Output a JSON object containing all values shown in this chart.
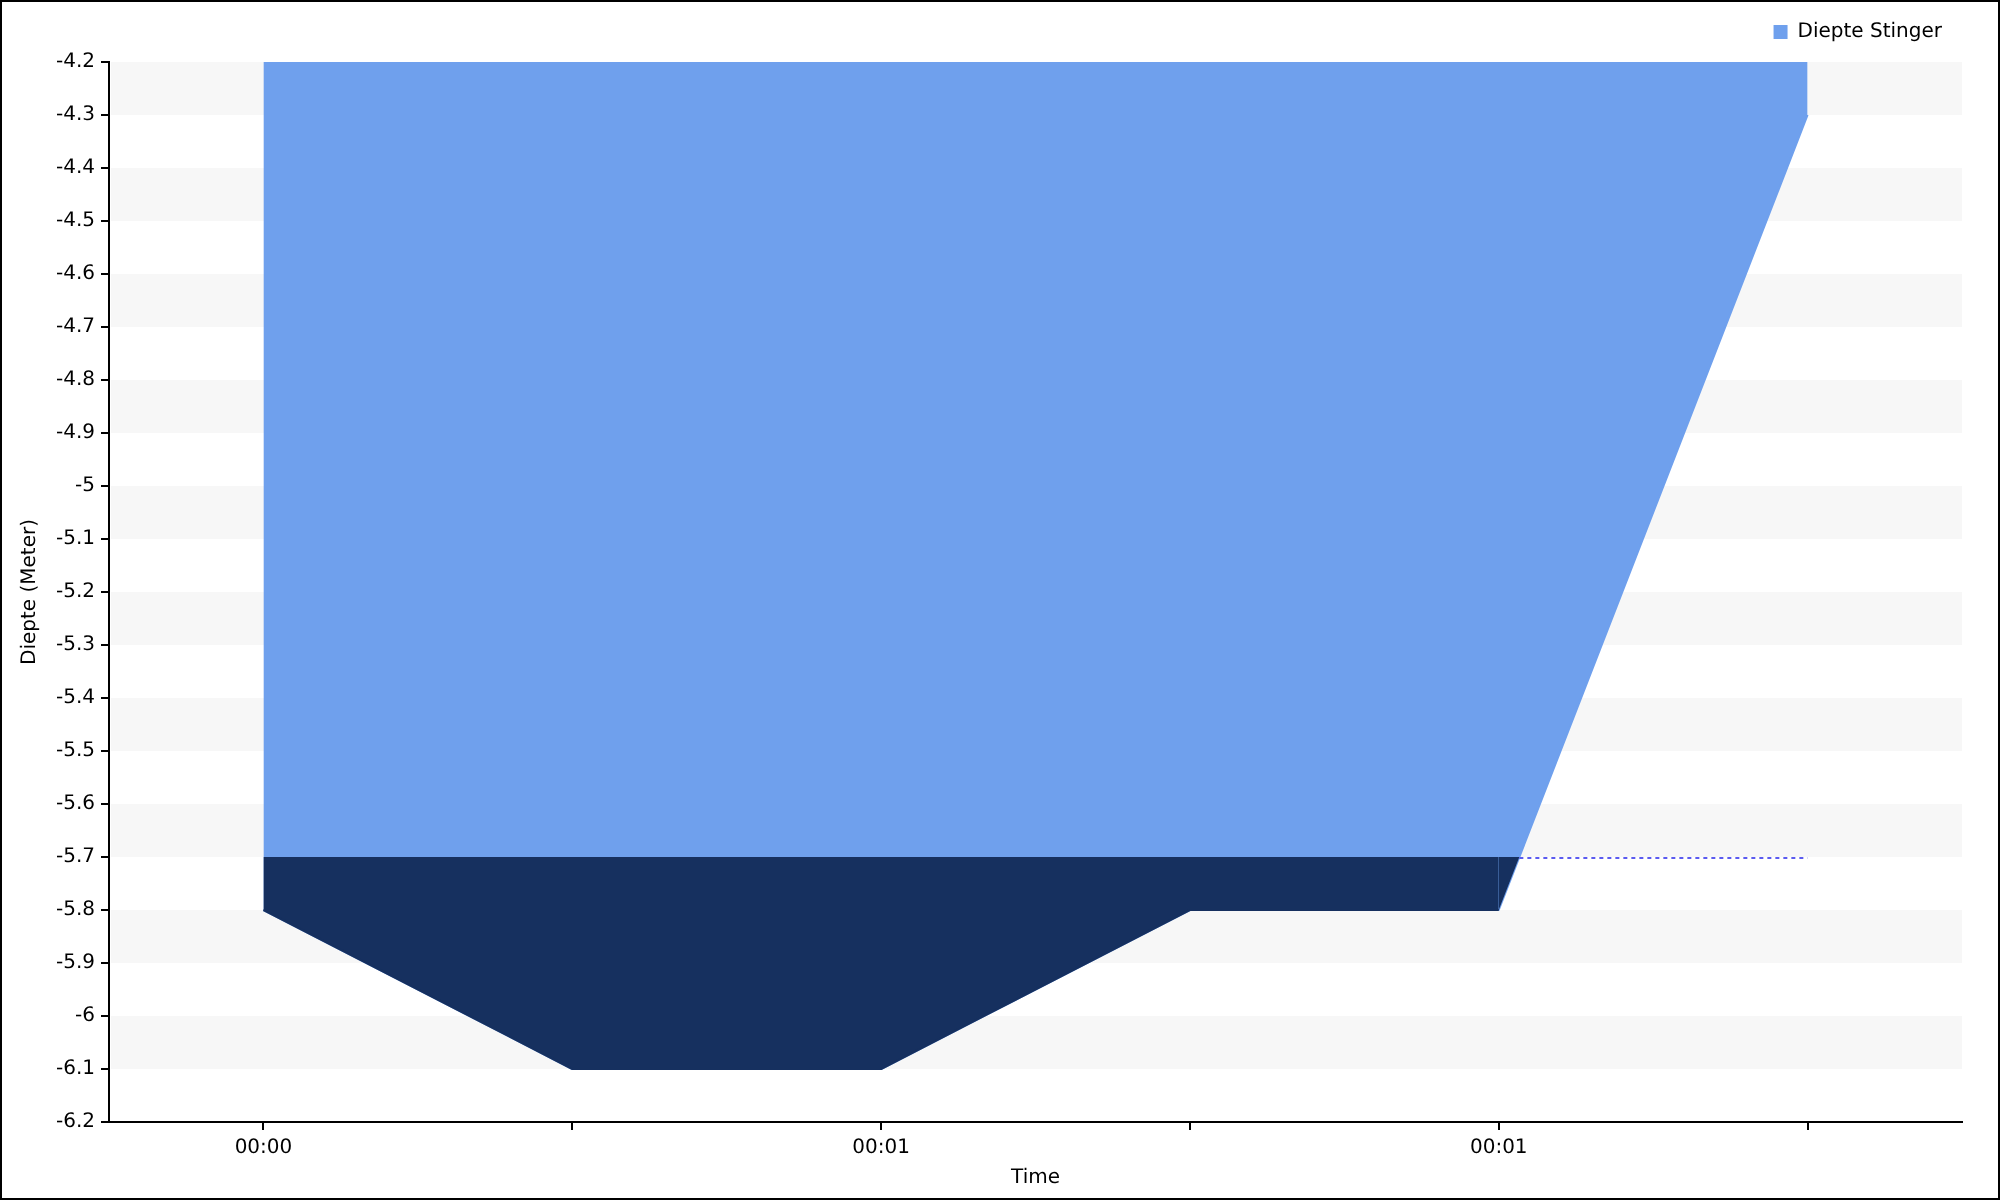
{
  "chart_data": {
    "type": "area",
    "xlabel": "Time",
    "ylabel": "Diepte (Meter)",
    "categories": [
      "00:00",
      null,
      "00:01",
      null,
      "00:01",
      null
    ],
    "series": [
      {
        "name": "Diepte Stinger",
        "color": "#6fa0ed",
        "values": [
          -5.8,
          -6.1,
          -6.1,
          -5.8,
          -5.8,
          -4.3
        ]
      },
      {
        "color": "#16305f",
        "values": [
          -5.8,
          -6.1,
          -6.1,
          -5.8,
          -5.8,
          -4.3
        ],
        "type": "area"
      }
    ],
    "ylim": [
      -6.2,
      -4.2
    ],
    "yticks": [
      -6.2,
      -6.1,
      -6,
      -5.9,
      -5.8,
      -5.7,
      -5.6,
      -5.5,
      -5.4,
      -5.3,
      -5.2,
      -5.1,
      -5,
      -4.9,
      -4.8,
      -4.7,
      -4.6,
      -4.5,
      -4.4,
      -4.3,
      -4.2
    ],
    "ref_lines": [
      {
        "axis": "y",
        "value": -5.7,
        "color": "#5b5bf0",
        "line_style": "dotted"
      }
    ],
    "bands": [
      {
        "axis": "y",
        "from": -6.1,
        "to": -6,
        "color": "#f7f7f7"
      },
      {
        "axis": "y",
        "from": -5.9,
        "to": -5.8,
        "color": "#f7f7f7"
      },
      {
        "axis": "y",
        "from": -5.7,
        "to": -5.6,
        "color": "#f7f7f7"
      },
      {
        "axis": "y",
        "from": -5.5,
        "to": -5.4,
        "color": "#f7f7f7"
      },
      {
        "axis": "y",
        "from": -5.3,
        "to": -5.2,
        "color": "#f7f7f7"
      },
      {
        "axis": "y",
        "from": -5.1,
        "to": -5,
        "color": "#f7f7f7"
      },
      {
        "axis": "y",
        "from": -4.9,
        "to": -4.8,
        "color": "#f7f7f7"
      },
      {
        "axis": "y",
        "from": -4.7,
        "to": -4.6,
        "color": "#f7f7f7"
      },
      {
        "axis": "y",
        "from": -4.5,
        "to": -4.4,
        "color": "#f7f7f7"
      },
      {
        "axis": "y",
        "from": -4.3,
        "to": -4.2,
        "color": "#f7f7f7"
      }
    ],
    "legend": "top right"
  }
}
